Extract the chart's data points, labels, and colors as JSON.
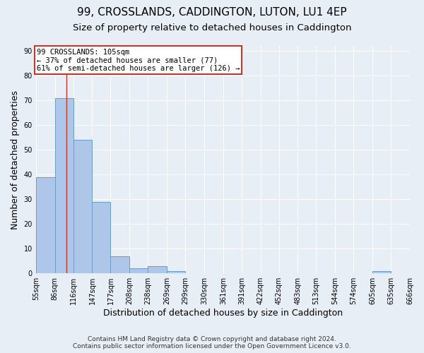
{
  "title1": "99, CROSSLANDS, CADDINGTON, LUTON, LU1 4EP",
  "title2": "Size of property relative to detached houses in Caddington",
  "xlabel": "Distribution of detached houses by size in Caddington",
  "ylabel": "Number of detached properties",
  "bin_edges": [
    55,
    86,
    116,
    147,
    177,
    208,
    238,
    269,
    299,
    330,
    361,
    391,
    422,
    452,
    483,
    513,
    544,
    574,
    605,
    635,
    666
  ],
  "bar_heights": [
    39,
    71,
    54,
    29,
    7,
    2,
    3,
    1,
    0,
    0,
    0,
    0,
    0,
    0,
    0,
    0,
    0,
    0,
    1,
    0
  ],
  "bar_color": "#aec6e8",
  "bar_edge_color": "#6b9dc8",
  "vline_x": 105,
  "vline_color": "#c0392b",
  "annotation_text": "99 CROSSLANDS: 105sqm\n← 37% of detached houses are smaller (77)\n61% of semi-detached houses are larger (126) →",
  "annotation_box_color": "white",
  "annotation_box_edge": "#c0392b",
  "ylim": [
    0,
    92
  ],
  "yticks": [
    0,
    10,
    20,
    30,
    40,
    50,
    60,
    70,
    80,
    90
  ],
  "footer_line1": "Contains HM Land Registry data © Crown copyright and database right 2024.",
  "footer_line2": "Contains public sector information licensed under the Open Government Licence v3.0.",
  "bg_color": "#e8eef5",
  "plot_bg_color": "#e8eef5",
  "grid_color": "white",
  "title1_fontsize": 11,
  "title2_fontsize": 9.5,
  "axis_label_fontsize": 9,
  "tick_fontsize": 7,
  "footer_fontsize": 6.5
}
